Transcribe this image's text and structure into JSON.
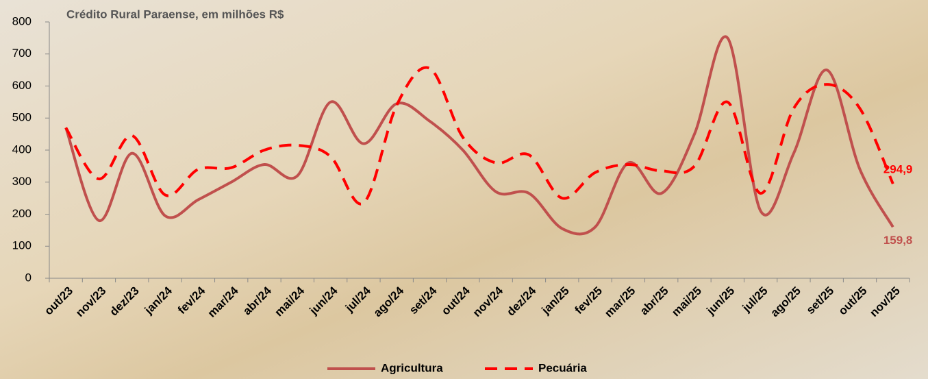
{
  "chart_data": {
    "type": "line",
    "title": "Crédito Rural Paraense, em milhões R$",
    "categories": [
      "out/23",
      "nov/23",
      "dez/23",
      "jan/24",
      "fev/24",
      "mar/24",
      "abr/24",
      "mai/24",
      "jun/24",
      "jul/24",
      "ago/24",
      "set/24",
      "out/24",
      "nov/24",
      "dez/24",
      "jan/25",
      "fev/25",
      "mar/25",
      "abr/25",
      "mai/25",
      "jun/25",
      "jul/25",
      "ago/25",
      "set/25",
      "out/25",
      "nov/25"
    ],
    "series": [
      {
        "name": "Agricultura",
        "color": "#c0504d",
        "dashed": false,
        "values": [
          470,
          180,
          390,
          195,
          245,
          300,
          355,
          320,
          550,
          420,
          545,
          490,
          400,
          270,
          265,
          155,
          160,
          360,
          265,
          450,
          750,
          210,
          390,
          650,
          340,
          159.8
        ],
        "value_labels": [
          null,
          null,
          null,
          null,
          null,
          null,
          null,
          null,
          null,
          null,
          null,
          null,
          null,
          null,
          null,
          null,
          null,
          null,
          null,
          null,
          null,
          null,
          null,
          null,
          null,
          "159,8"
        ]
      },
      {
        "name": "Pecuária",
        "color": "#ff0000",
        "dashed": true,
        "values": [
          470,
          310,
          445,
          260,
          340,
          345,
          400,
          415,
          380,
          235,
          540,
          655,
          440,
          360,
          385,
          250,
          330,
          355,
          335,
          350,
          550,
          265,
          530,
          605,
          530,
          294.9
        ],
        "value_labels": [
          null,
          null,
          null,
          null,
          null,
          null,
          null,
          null,
          null,
          null,
          null,
          null,
          null,
          null,
          null,
          null,
          null,
          null,
          null,
          null,
          null,
          null,
          null,
          null,
          null,
          "294,9"
        ]
      }
    ],
    "ylim": [
      0,
      800
    ],
    "yticks": [
      0,
      100,
      200,
      300,
      400,
      500,
      600,
      700,
      800
    ],
    "grid": false,
    "legend": "bottom"
  }
}
